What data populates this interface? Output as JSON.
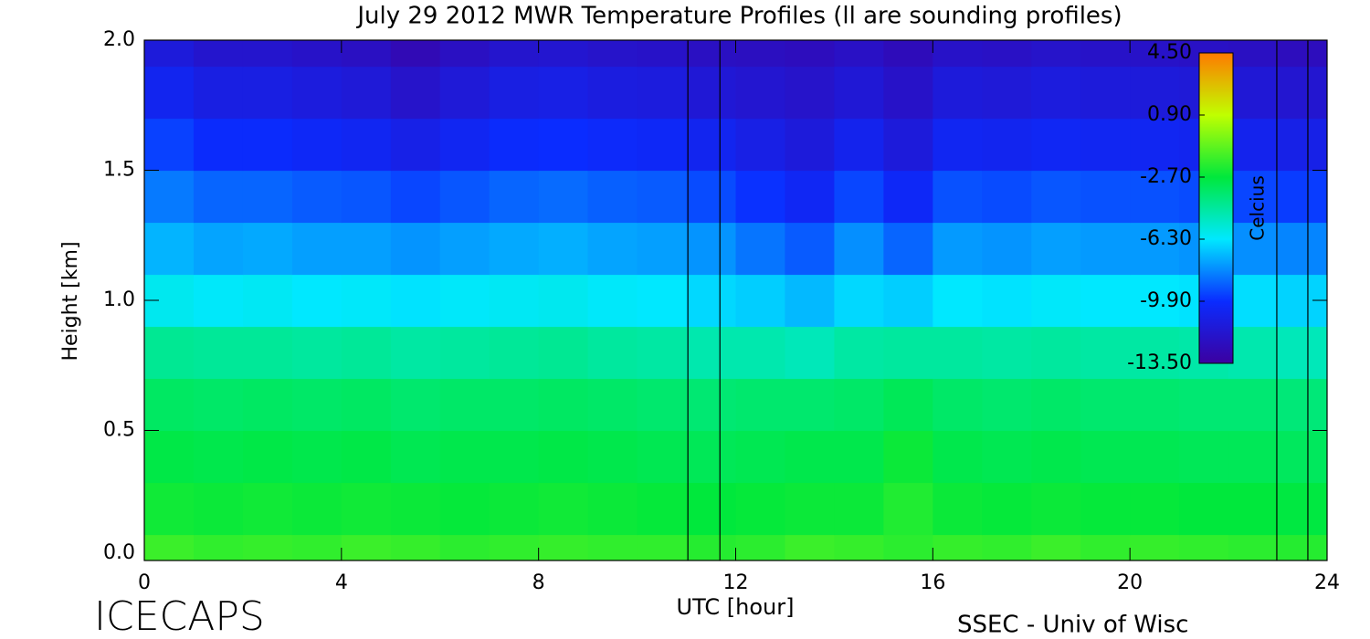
{
  "chart_data": {
    "type": "heatmap",
    "title": "July 29 2012 MWR Temperature Profiles (ll are sounding profiles)",
    "x_label": "UTC [hour]",
    "y_label": "Height [km]",
    "colorbar_label": "Celcius",
    "footer_left": "ICECAPS",
    "footer_right": "SSEC - Univ of Wisc",
    "xlim": [
      0,
      24
    ],
    "xticks": [
      0,
      4,
      8,
      12,
      16,
      20,
      24
    ],
    "ylim": [
      0,
      2
    ],
    "yticks": [
      {
        "value": 0,
        "label": "0.0"
      },
      0.5,
      {
        "value": 1,
        "label": "1.0"
      },
      1.5,
      {
        "value": 2,
        "label": "2.0"
      }
    ],
    "clim": [
      -13.5,
      4.5
    ],
    "cticks": [
      {
        "value": -13.5,
        "label": "-13.50"
      },
      {
        "value": -9.9,
        "label": "-9.90"
      },
      {
        "value": -6.3,
        "label": "-6.30"
      },
      {
        "value": -2.7,
        "label": "-2.70"
      },
      {
        "value": 0.9,
        "label": "0.90"
      },
      {
        "value": 4.5,
        "label": "4.50"
      }
    ],
    "colors": [
      "#3c00a0",
      "#0a2cff",
      "#00e8ff",
      "#00e83c",
      "#c0ff00",
      "#ff7a00"
    ],
    "sounding_lines": [
      11.03,
      11.68,
      22.98,
      23.61
    ],
    "x": [
      0.5,
      1.5,
      2.5,
      3.5,
      4.5,
      5.5,
      6.5,
      7.5,
      8.5,
      9.5,
      10.5,
      11.5,
      12.5,
      13.5,
      14.5,
      15.5,
      16.5,
      17.5,
      18.5,
      19.5,
      20.5,
      21.5,
      22.5,
      23.5
    ],
    "y": [
      0,
      0.2,
      0.4,
      0.6,
      0.8,
      1.0,
      1.2,
      1.4,
      1.6,
      1.8,
      2.0
    ],
    "z": [
      [
        -1.6,
        -1.8,
        -1.7,
        -1.8,
        -1.6,
        -1.7,
        -1.9,
        -1.8,
        -1.7,
        -1.8,
        -1.8,
        -2.0,
        -1.9,
        -1.6,
        -1.7,
        -1.9,
        -1.7,
        -1.8,
        -1.6,
        -1.8,
        -1.7,
        -1.8,
        -1.9,
        -2.0
      ],
      [
        -2.4,
        -2.5,
        -2.4,
        -2.5,
        -2.4,
        -2.5,
        -2.6,
        -2.5,
        -2.4,
        -2.5,
        -2.6,
        -2.7,
        -2.6,
        -2.5,
        -2.5,
        -2.1,
        -2.5,
        -2.6,
        -2.5,
        -2.6,
        -2.6,
        -2.7,
        -2.7,
        -2.8
      ],
      [
        -2.9,
        -3.0,
        -2.9,
        -3.0,
        -2.9,
        -3.1,
        -3.0,
        -3.0,
        -2.9,
        -3.0,
        -3.1,
        -3.2,
        -3.1,
        -3.0,
        -3.0,
        -2.5,
        -3.0,
        -3.1,
        -3.0,
        -3.1,
        -3.1,
        -3.2,
        -3.2,
        -3.3
      ],
      [
        -3.4,
        -3.5,
        -3.4,
        -3.5,
        -3.4,
        -3.6,
        -3.5,
        -3.5,
        -3.4,
        -3.5,
        -3.6,
        -3.7,
        -3.6,
        -3.6,
        -3.5,
        -3.2,
        -3.5,
        -3.6,
        -3.5,
        -3.6,
        -3.6,
        -3.7,
        -3.7,
        -3.8
      ],
      [
        -4.3,
        -4.4,
        -4.4,
        -4.5,
        -4.4,
        -4.6,
        -4.5,
        -4.4,
        -4.3,
        -4.5,
        -4.6,
        -4.8,
        -4.8,
        -5.0,
        -4.6,
        -4.5,
        -4.5,
        -4.6,
        -4.5,
        -4.6,
        -4.6,
        -4.7,
        -4.8,
        -5.0
      ],
      [
        -6.0,
        -6.2,
        -6.1,
        -6.3,
        -6.2,
        -6.4,
        -6.2,
        -6.1,
        -6.0,
        -6.2,
        -6.3,
        -6.6,
        -6.8,
        -7.2,
        -6.6,
        -6.8,
        -6.3,
        -6.4,
        -6.2,
        -6.3,
        -6.3,
        -6.4,
        -6.5,
        -6.7
      ],
      [
        -7.3,
        -7.6,
        -7.5,
        -7.7,
        -7.7,
        -7.9,
        -7.7,
        -7.5,
        -7.4,
        -7.6,
        -7.7,
        -7.9,
        -8.5,
        -9.0,
        -8.0,
        -8.8,
        -7.8,
        -7.9,
        -7.7,
        -7.8,
        -7.8,
        -7.9,
        -8.0,
        -8.2
      ],
      [
        -8.4,
        -8.8,
        -8.8,
        -9.0,
        -9.1,
        -9.4,
        -9.1,
        -8.8,
        -8.7,
        -8.9,
        -9.0,
        -9.3,
        -9.8,
        -10.3,
        -9.4,
        -10.2,
        -9.2,
        -9.3,
        -9.1,
        -9.2,
        -9.2,
        -9.3,
        -9.4,
        -9.6
      ],
      [
        -9.5,
        -10.0,
        -10.0,
        -10.2,
        -10.4,
        -10.8,
        -10.4,
        -10.0,
        -9.9,
        -10.1,
        -10.2,
        -10.5,
        -10.9,
        -11.3,
        -10.6,
        -11.3,
        -10.4,
        -10.5,
        -10.3,
        -10.4,
        -10.4,
        -10.5,
        -10.6,
        -10.8
      ],
      [
        -10.5,
        -11.0,
        -11.0,
        -11.2,
        -11.4,
        -11.9,
        -11.4,
        -11.0,
        -10.9,
        -11.1,
        -11.2,
        -11.5,
        -11.7,
        -11.9,
        -11.5,
        -12.0,
        -11.3,
        -11.4,
        -11.2,
        -11.3,
        -11.3,
        -11.4,
        -11.5,
        -11.7
      ],
      [
        -11.3,
        -11.8,
        -11.8,
        -12.0,
        -12.2,
        -12.7,
        -12.2,
        -11.8,
        -11.7,
        -11.9,
        -12.0,
        -12.2,
        -12.3,
        -12.4,
        -12.1,
        -12.5,
        -12.0,
        -12.1,
        -11.9,
        -12.0,
        -12.0,
        -12.1,
        -12.2,
        -12.4
      ]
    ]
  }
}
